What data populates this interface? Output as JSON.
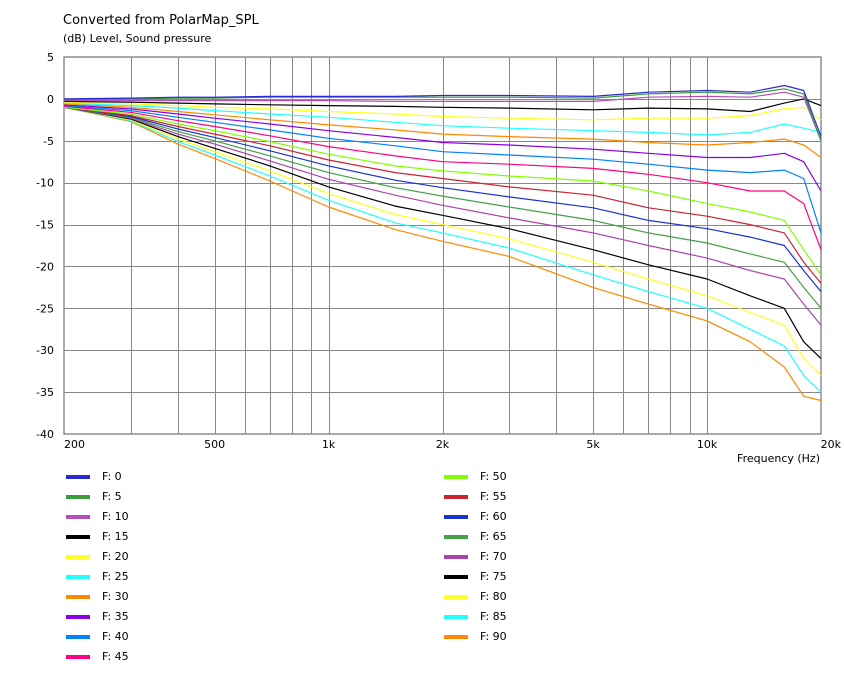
{
  "chart_data": {
    "type": "line",
    "title": "Converted from PolarMap_SPL",
    "ylabel": "(dB)  Level, Sound pressure",
    "xlabel": "Frequency  (Hz)",
    "xscale": "log",
    "xlim": [
      200,
      20000
    ],
    "ylim": [
      -40,
      5
    ],
    "yticks": [
      "5",
      "0",
      "-5",
      "-10",
      "-15",
      "-20",
      "-25",
      "-30",
      "-35",
      "-40"
    ],
    "xticks": [
      "200",
      "500",
      "1k",
      "2k",
      "5k",
      "10k",
      "20k"
    ],
    "grid": true,
    "legend_position": "bottom",
    "x": [
      200,
      300,
      400,
      500,
      700,
      1000,
      1500,
      2000,
      3000,
      5000,
      7000,
      10000,
      13000,
      16000,
      18000,
      20000
    ],
    "series": [
      {
        "name": "F: 0",
        "color": "#2a2ad4",
        "values": [
          0,
          0.1,
          0.2,
          0.2,
          0.3,
          0.3,
          0.3,
          0.4,
          0.4,
          0.3,
          0.8,
          1.0,
          0.8,
          1.6,
          1.0,
          -4.5
        ]
      },
      {
        "name": "F: 5",
        "color": "#3c9c3c",
        "values": [
          -0.1,
          0,
          0.1,
          0.1,
          0.2,
          0.2,
          0.2,
          0.2,
          0.2,
          0.1,
          0.6,
          0.8,
          0.6,
          1.2,
          0.6,
          -5.0
        ]
      },
      {
        "name": "F: 10",
        "color": "#b050b8",
        "values": [
          -0.2,
          -0.2,
          -0.2,
          -0.2,
          -0.2,
          -0.2,
          -0.3,
          -0.3,
          -0.3,
          -0.3,
          0.2,
          0.3,
          0.2,
          0.8,
          0.2,
          -5.0
        ]
      },
      {
        "name": "F: 15",
        "color": "#000000",
        "values": [
          -0.3,
          -0.4,
          -0.5,
          -0.6,
          -0.7,
          -0.8,
          -0.9,
          -1.0,
          -1.1,
          -1.3,
          -1.1,
          -1.2,
          -1.5,
          -0.5,
          0,
          -0.8
        ]
      },
      {
        "name": "F: 20",
        "color": "#ffff22",
        "values": [
          -0.4,
          -0.6,
          -0.8,
          -1.0,
          -1.2,
          -1.5,
          -1.8,
          -2.1,
          -2.3,
          -2.5,
          -2.3,
          -2.3,
          -2.0,
          -1.2,
          -1.0,
          -2.5
        ]
      },
      {
        "name": "F: 25",
        "color": "#22ffff",
        "values": [
          -0.5,
          -0.8,
          -1.1,
          -1.4,
          -1.8,
          -2.2,
          -2.8,
          -3.2,
          -3.5,
          -3.8,
          -4.0,
          -4.3,
          -4.0,
          -3.0,
          -3.5,
          -4.0
        ]
      },
      {
        "name": "F: 30",
        "color": "#ff8800",
        "values": [
          -0.6,
          -1.0,
          -1.5,
          -1.9,
          -2.5,
          -3.1,
          -3.7,
          -4.2,
          -4.5,
          -4.8,
          -5.2,
          -5.5,
          -5.2,
          -4.8,
          -5.5,
          -7.0
        ]
      },
      {
        "name": "F: 35",
        "color": "#8a00e6",
        "values": [
          -0.7,
          -1.2,
          -1.8,
          -2.3,
          -3.0,
          -3.8,
          -4.6,
          -5.2,
          -5.5,
          -6.0,
          -6.5,
          -7.0,
          -7.0,
          -6.5,
          -7.5,
          -11.0
        ]
      },
      {
        "name": "F: 40",
        "color": "#0080ff",
        "values": [
          -0.8,
          -1.4,
          -2.2,
          -2.8,
          -3.7,
          -4.7,
          -5.6,
          -6.3,
          -6.7,
          -7.2,
          -7.8,
          -8.5,
          -8.8,
          -8.5,
          -9.5,
          -16.0
        ]
      },
      {
        "name": "F: 45",
        "color": "#ff0080",
        "values": [
          -0.9,
          -1.6,
          -2.6,
          -3.3,
          -4.4,
          -5.7,
          -6.8,
          -7.5,
          -7.8,
          -8.3,
          -9.0,
          -10.0,
          -11.0,
          -11.0,
          -12.5,
          -18.0
        ]
      },
      {
        "name": "F: 50",
        "color": "#80ff00",
        "values": [
          -1.0,
          -1.8,
          -3.0,
          -3.8,
          -5.1,
          -6.6,
          -8.0,
          -8.6,
          -9.2,
          -9.8,
          -11.0,
          -12.5,
          -13.5,
          -14.5,
          -18.0,
          -21.0
        ]
      },
      {
        "name": "F: 55",
        "color": "#cc2233",
        "values": [
          -1.0,
          -2.0,
          -3.3,
          -4.2,
          -5.6,
          -7.3,
          -8.8,
          -9.5,
          -10.5,
          -11.5,
          -13.0,
          -14.0,
          -15.0,
          -16.0,
          -19.5,
          -22.0
        ]
      },
      {
        "name": "F: 60",
        "color": "#1a33cc",
        "values": [
          -1.0,
          -2.1,
          -3.6,
          -4.6,
          -6.2,
          -8.0,
          -9.7,
          -10.6,
          -11.7,
          -13.0,
          -14.5,
          -15.5,
          -16.5,
          -17.5,
          -20.5,
          -23.0
        ]
      },
      {
        "name": "F: 65",
        "color": "#44a044",
        "values": [
          -1.0,
          -2.2,
          -3.9,
          -5.0,
          -6.8,
          -8.8,
          -10.6,
          -11.6,
          -12.9,
          -14.5,
          -16.0,
          -17.2,
          -18.5,
          -19.5,
          -22.5,
          -25.0
        ]
      },
      {
        "name": "F: 70",
        "color": "#aa44aa",
        "values": [
          -1.0,
          -2.3,
          -4.2,
          -5.4,
          -7.4,
          -9.6,
          -11.5,
          -12.7,
          -14.2,
          -16.0,
          -17.5,
          -19.0,
          -20.5,
          -21.5,
          -24.5,
          -27.0
        ]
      },
      {
        "name": "F: 75",
        "color": "#000000",
        "values": [
          -1.0,
          -2.4,
          -4.5,
          -5.9,
          -8.0,
          -10.5,
          -12.8,
          -13.9,
          -15.5,
          -18.0,
          -19.8,
          -21.5,
          -23.5,
          -25.0,
          -29.0,
          -31.0
        ]
      },
      {
        "name": "F: 80",
        "color": "#ffff22",
        "values": [
          -1.0,
          -2.5,
          -4.8,
          -6.3,
          -8.6,
          -11.3,
          -13.8,
          -15.0,
          -16.7,
          -19.5,
          -21.5,
          -23.5,
          -25.5,
          -27.0,
          -31.0,
          -33.0
        ]
      },
      {
        "name": "F: 85",
        "color": "#22ffff",
        "values": [
          -1.0,
          -2.6,
          -5.1,
          -6.7,
          -9.2,
          -12.1,
          -14.8,
          -16.0,
          -17.8,
          -21.0,
          -23.0,
          -25.0,
          -27.5,
          -29.5,
          -33.0,
          -35.0
        ]
      },
      {
        "name": "F: 90",
        "color": "#ff8800",
        "values": [
          -1.0,
          -2.7,
          -5.4,
          -7.1,
          -9.8,
          -12.9,
          -15.6,
          -17.0,
          -18.8,
          -22.5,
          -24.5,
          -26.5,
          -29.0,
          -32.0,
          -35.5,
          -36.0
        ]
      }
    ]
  }
}
